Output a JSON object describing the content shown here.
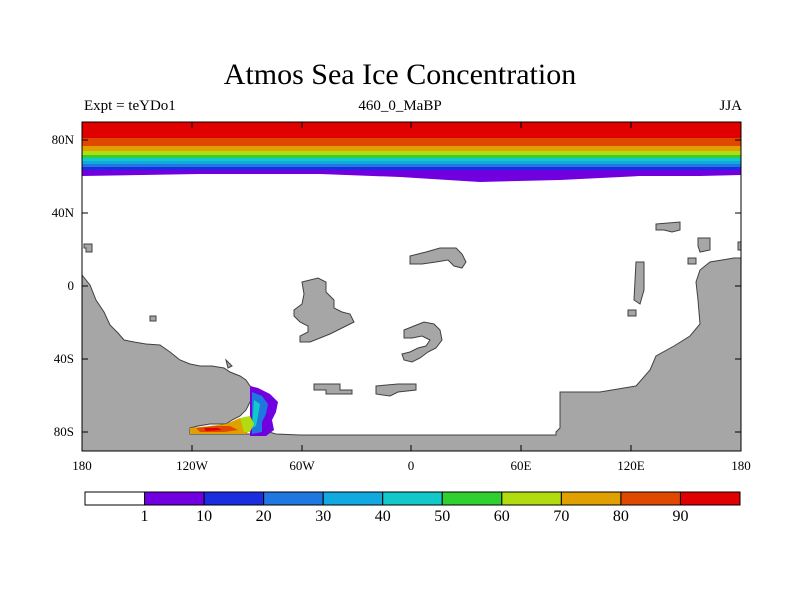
{
  "header": {
    "title": "Atmos Sea Ice Concentration",
    "experiment": "Expt = teYDo1",
    "period": "460_0_MaBP",
    "season": "JJA"
  },
  "axes": {
    "lat_labels": [
      "80N",
      "40N",
      "0",
      "40S",
      "80S"
    ],
    "lon_labels": [
      "180",
      "120W",
      "60W",
      "0",
      "60E",
      "120E",
      "180"
    ]
  },
  "colorbar": {
    "levels": [
      "1",
      "10",
      "20",
      "30",
      "40",
      "50",
      "60",
      "70",
      "80",
      "90"
    ],
    "colors": [
      "#ffffff",
      "#7000e0",
      "#1a2ee0",
      "#1e78e0",
      "#12a8e0",
      "#12c8c8",
      "#30d030",
      "#b0dc10",
      "#e0a000",
      "#e04800",
      "#e00000"
    ]
  },
  "legend_colors": {
    "land": "#a6a6a6",
    "ocean": "#ffffff"
  }
}
